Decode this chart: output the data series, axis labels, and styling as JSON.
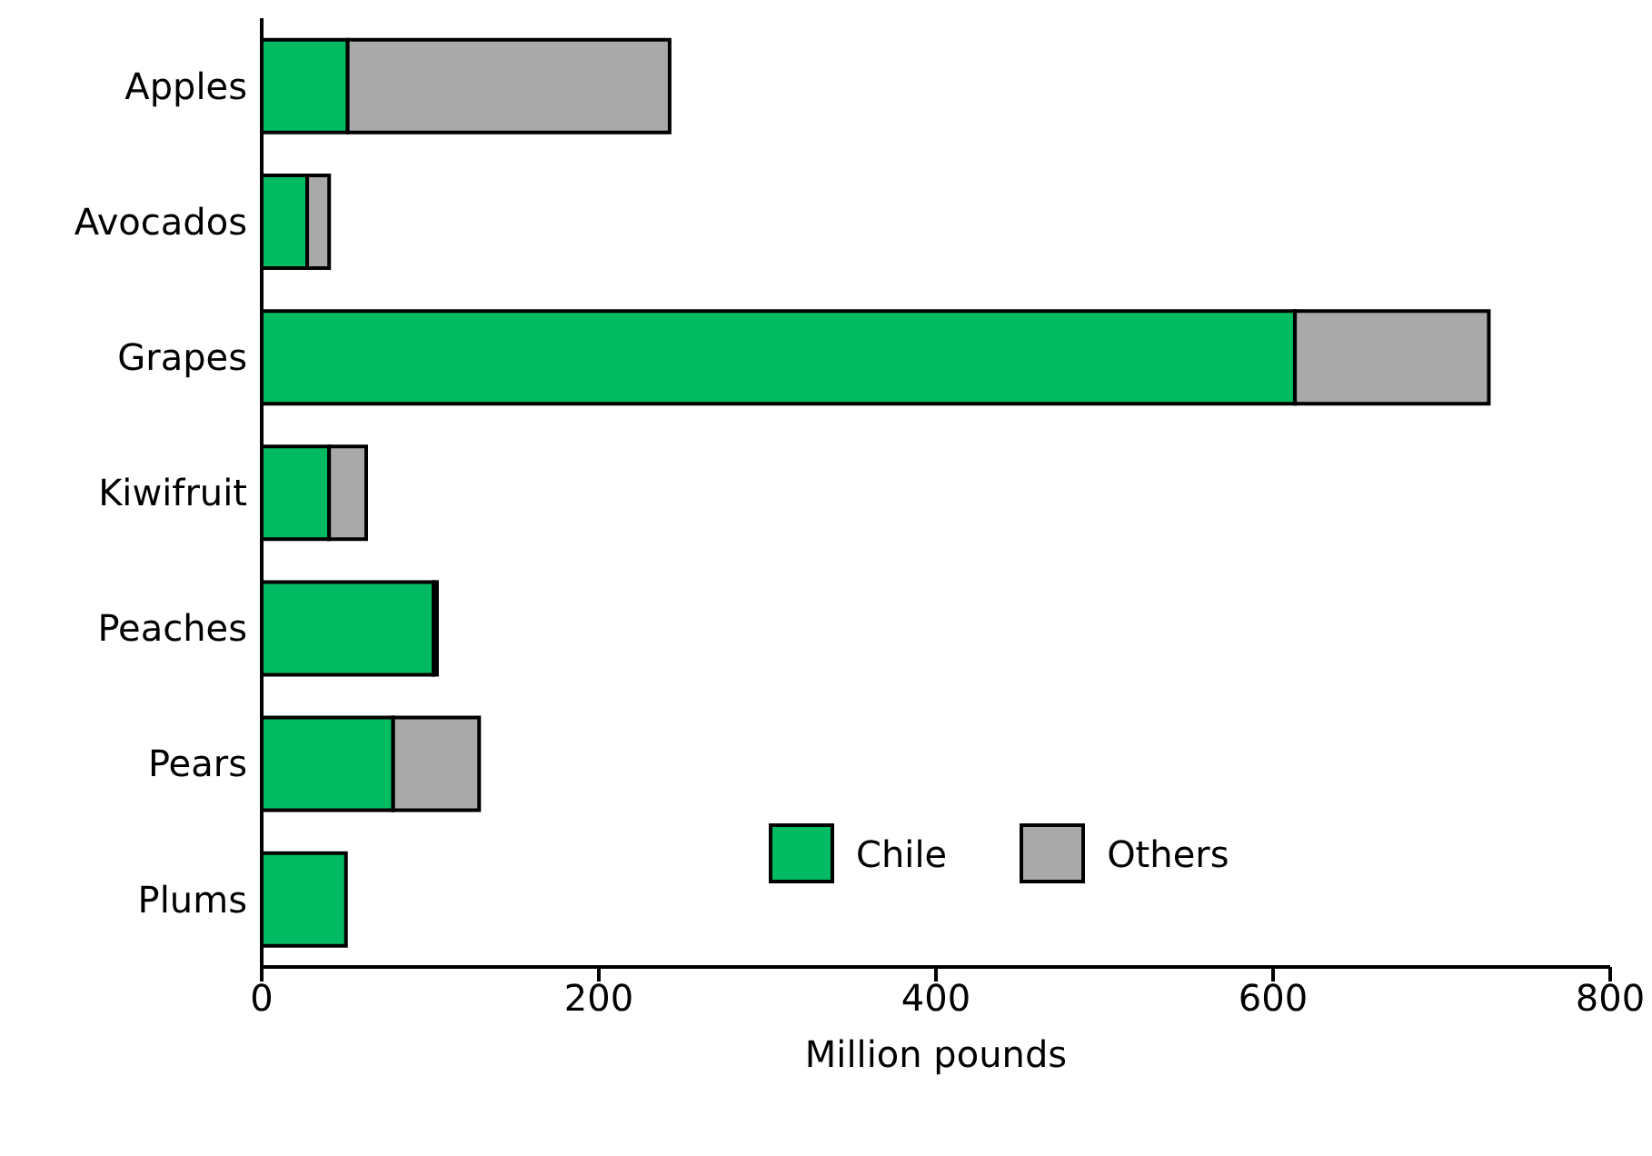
{
  "chart_data": {
    "type": "bar",
    "orientation": "horizontal",
    "stacked": true,
    "xlabel": "Million pounds",
    "categories": [
      "Apples",
      "Avocados",
      "Grapes",
      "Kiwifruit",
      "Peaches",
      "Pears",
      "Plums"
    ],
    "series": [
      {
        "name": "Chile",
        "color": "#00bb62",
        "values": [
          51,
          27,
          613,
          40,
          102,
          78,
          50
        ]
      },
      {
        "name": "Others",
        "color": "#a9a9a9",
        "values": [
          191,
          13,
          115,
          22,
          2,
          51,
          0
        ]
      }
    ],
    "xlim": [
      0,
      800
    ],
    "xticks": [
      0,
      200,
      400,
      600,
      800
    ],
    "grid": false,
    "legend": "bottom right"
  }
}
